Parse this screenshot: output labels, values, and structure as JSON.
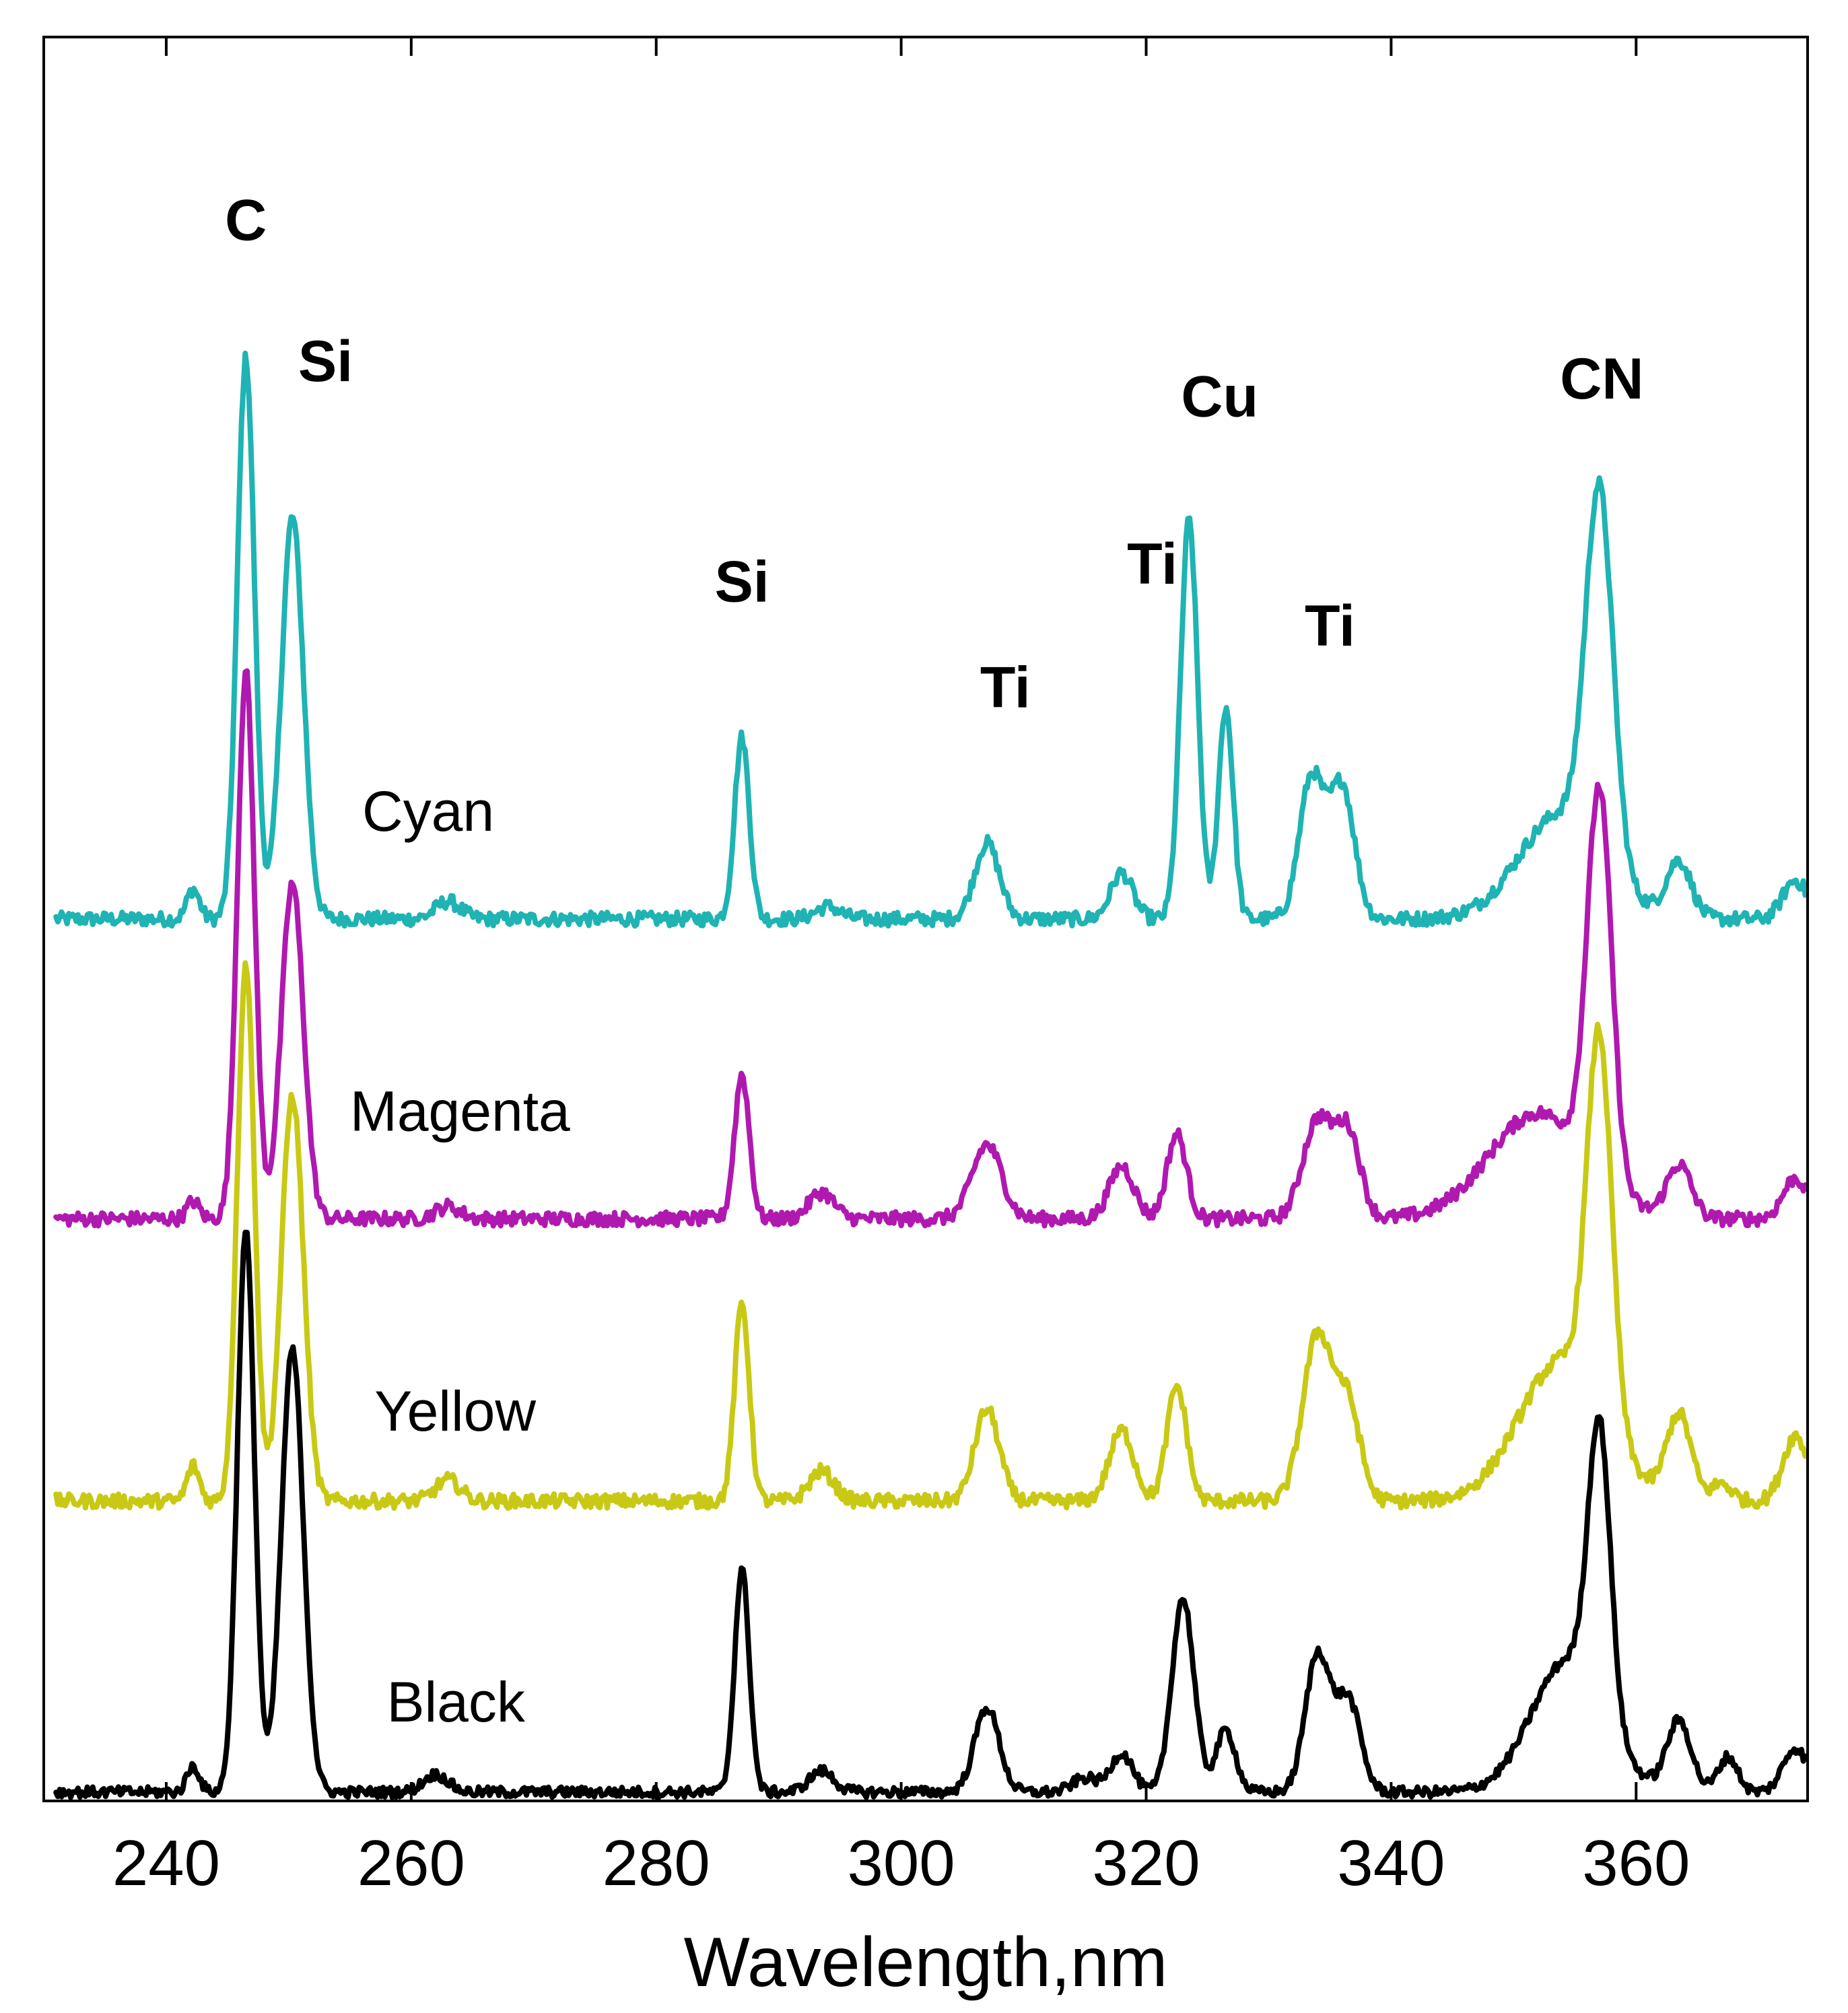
{
  "chart_data": {
    "type": "line",
    "title": "",
    "xlabel": "Wavelength,nm",
    "ylabel": "",
    "xlim": [
      230,
      374
    ],
    "ylim": [
      0,
      1
    ],
    "x_ticks": [
      240,
      260,
      280,
      300,
      320,
      340,
      360
    ],
    "tick_labels": [
      "240",
      "260",
      "280",
      "300",
      "320",
      "340",
      "360"
    ],
    "grid": false,
    "legend": "none",
    "series": [
      {
        "name": "Cyan",
        "color": "#1fb3b3",
        "baseline": 0.5,
        "noise": 0.004,
        "peaks": [
          [
            242.2,
            0.017,
            0.5
          ],
          [
            246.5,
            0.318,
            0.7
          ],
          [
            250.3,
            0.228,
            0.9
          ],
          [
            263,
            0.01,
            1.0
          ],
          [
            287,
            0.103,
            0.6
          ],
          [
            294,
            0.007,
            1.0
          ],
          [
            307,
            0.043,
            1.0
          ],
          [
            318,
            0.026,
            0.9
          ],
          [
            323.5,
            0.226,
            0.7
          ],
          [
            326.5,
            0.12,
            0.6
          ],
          [
            333.5,
            0.08,
            1.0
          ],
          [
            336,
            0.075,
            1.0
          ],
          [
            354,
            0.06,
            3.5
          ],
          [
            357,
            0.205,
            1.1
          ],
          [
            363.5,
            0.032,
            1.0
          ],
          [
            373,
            0.022,
            1.0
          ]
        ]
      },
      {
        "name": "Magenta",
        "color": "#b019b0",
        "baseline": 0.33,
        "noise": 0.004,
        "peaks": [
          [
            242.2,
            0.01,
            0.5
          ],
          [
            246.5,
            0.31,
            0.7
          ],
          [
            250.3,
            0.19,
            0.9
          ],
          [
            263,
            0.007,
            1.0
          ],
          [
            287,
            0.082,
            0.6
          ],
          [
            293.5,
            0.015,
            1.0
          ],
          [
            307,
            0.042,
            1.2
          ],
          [
            318,
            0.03,
            1.0
          ],
          [
            322.5,
            0.048,
            0.8
          ],
          [
            334,
            0.056,
            1.2
          ],
          [
            336.5,
            0.048,
            1.0
          ],
          [
            352,
            0.06,
            4.0
          ],
          [
            357,
            0.218,
            1.0
          ],
          [
            363.5,
            0.03,
            1.0
          ],
          [
            373,
            0.023,
            1.0
          ]
        ]
      },
      {
        "name": "Yellow",
        "color": "#c9c915",
        "baseline": 0.17,
        "noise": 0.004,
        "peaks": [
          [
            242.2,
            0.02,
            0.5
          ],
          [
            246.5,
            0.305,
            0.7
          ],
          [
            250.3,
            0.23,
            0.9
          ],
          [
            263,
            0.012,
            1.0
          ],
          [
            287,
            0.112,
            0.6
          ],
          [
            293.5,
            0.017,
            1.0
          ],
          [
            307,
            0.052,
            1.0
          ],
          [
            318,
            0.04,
            1.0
          ],
          [
            322.5,
            0.065,
            0.8
          ],
          [
            334,
            0.094,
            1.2
          ],
          [
            336.5,
            0.052,
            1.0
          ],
          [
            354,
            0.08,
            3.5
          ],
          [
            357,
            0.212,
            1.0
          ],
          [
            363.5,
            0.048,
            1.0
          ],
          [
            367,
            0.01,
            0.8
          ],
          [
            373,
            0.037,
            1.0
          ]
        ]
      },
      {
        "name": "Black",
        "color": "#000000",
        "baseline": 0.005,
        "noise": 0.003,
        "peaks": [
          [
            242.2,
            0.015,
            0.5
          ],
          [
            246.5,
            0.318,
            0.7
          ],
          [
            250.3,
            0.251,
            0.9
          ],
          [
            262,
            0.01,
            1.0
          ],
          [
            287,
            0.126,
            0.6
          ],
          [
            293.5,
            0.012,
            1.0
          ],
          [
            307,
            0.048,
            1.0
          ],
          [
            315,
            0.008,
            1.0
          ],
          [
            318,
            0.022,
            0.9
          ],
          [
            323,
            0.11,
            0.9
          ],
          [
            326.5,
            0.035,
            0.8
          ],
          [
            334,
            0.078,
            1.0
          ],
          [
            336.5,
            0.052,
            1.0
          ],
          [
            354.5,
            0.075,
            3.0
          ],
          [
            357,
            0.16,
            0.9
          ],
          [
            363.5,
            0.04,
            1.0
          ],
          [
            367.5,
            0.02,
            0.8
          ],
          [
            373,
            0.025,
            1.0
          ]
        ]
      }
    ],
    "annotations": [
      {
        "text": "C",
        "x": 246.5,
        "y": 0.885
      },
      {
        "text": "Si",
        "x": 253,
        "y": 0.805
      },
      {
        "text": "Si",
        "x": 287,
        "y": 0.68
      },
      {
        "text": "Ti",
        "x": 308.5,
        "y": 0.62
      },
      {
        "text": "Ti",
        "x": 320.5,
        "y": 0.69
      },
      {
        "text": "Cu",
        "x": 326,
        "y": 0.785
      },
      {
        "text": "Ti",
        "x": 335,
        "y": 0.655
      },
      {
        "text": "CN",
        "x": 357.2,
        "y": 0.795
      }
    ],
    "series_labels": [
      {
        "text": "Cyan",
        "x": 256,
        "y": 0.55
      },
      {
        "text": "Magenta",
        "x": 255,
        "y": 0.38
      },
      {
        "text": "Yellow",
        "x": 257,
        "y": 0.21
      },
      {
        "text": "Black",
        "x": 258,
        "y": 0.045
      }
    ]
  }
}
